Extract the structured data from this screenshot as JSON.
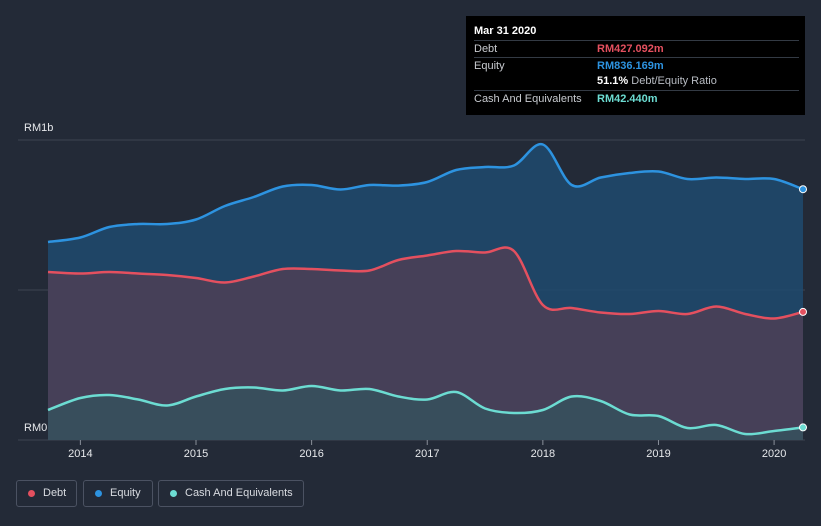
{
  "tooltip": {
    "date": "Mar 31 2020",
    "debt_label": "Debt",
    "debt_value": "RM427.092m",
    "equity_label": "Equity",
    "equity_value": "RM836.169m",
    "ratio_value": "51.1%",
    "ratio_label": "Debt/Equity Ratio",
    "cash_label": "Cash And Equivalents",
    "cash_value": "RM42.440m"
  },
  "legend": [
    {
      "label": "Debt",
      "color": "#e4505f"
    },
    {
      "label": "Equity",
      "color": "#2d93e0"
    },
    {
      "label": "Cash And Equivalents",
      "color": "#6cdcd2"
    }
  ],
  "chart_data": {
    "type": "area",
    "title": "",
    "ylabel_top": "RM1b",
    "ylabel_bottom": "RM0",
    "ylim": [
      0,
      1000
    ],
    "xlim": [
      2013.72,
      2020.25
    ],
    "x_ticks": [
      2014,
      2015,
      2016,
      2017,
      2018,
      2019,
      2020
    ],
    "x_tick_labels": [
      "2014",
      "2015",
      "2016",
      "2017",
      "2018",
      "2019",
      "2020"
    ],
    "colors": {
      "debt": "#e4505f",
      "equity": "#2d93e0",
      "cash": "#6cdcd2"
    },
    "series": [
      {
        "name": "Equity",
        "x": [
          2013.72,
          2014.0,
          2014.25,
          2014.5,
          2014.75,
          2015.0,
          2015.25,
          2015.5,
          2015.75,
          2016.0,
          2016.25,
          2016.5,
          2016.75,
          2017.0,
          2017.25,
          2017.5,
          2017.75,
          2018.0,
          2018.25,
          2018.5,
          2018.75,
          2019.0,
          2019.25,
          2019.5,
          2019.75,
          2020.0,
          2020.25
        ],
        "values": [
          660,
          675,
          710,
          720,
          720,
          735,
          780,
          810,
          845,
          850,
          835,
          850,
          848,
          860,
          900,
          910,
          915,
          985,
          850,
          875,
          890,
          895,
          870,
          875,
          870,
          870,
          836
        ]
      },
      {
        "name": "Debt",
        "x": [
          2013.72,
          2014.0,
          2014.25,
          2014.5,
          2014.75,
          2015.0,
          2015.25,
          2015.5,
          2015.75,
          2016.0,
          2016.25,
          2016.5,
          2016.75,
          2017.0,
          2017.25,
          2017.5,
          2017.75,
          2018.0,
          2018.25,
          2018.5,
          2018.75,
          2019.0,
          2019.25,
          2019.5,
          2019.75,
          2020.0,
          2020.25
        ],
        "values": [
          560,
          555,
          560,
          555,
          550,
          540,
          525,
          545,
          570,
          570,
          565,
          565,
          600,
          615,
          630,
          625,
          630,
          450,
          440,
          425,
          420,
          430,
          420,
          445,
          420,
          405,
          427
        ]
      },
      {
        "name": "Cash And Equivalents",
        "x": [
          2013.72,
          2014.0,
          2014.25,
          2014.5,
          2014.75,
          2015.0,
          2015.25,
          2015.5,
          2015.75,
          2016.0,
          2016.25,
          2016.5,
          2016.75,
          2017.0,
          2017.25,
          2017.5,
          2017.75,
          2018.0,
          2018.25,
          2018.5,
          2018.75,
          2019.0,
          2019.25,
          2019.5,
          2019.75,
          2020.0,
          2020.25
        ],
        "values": [
          100,
          140,
          150,
          135,
          115,
          145,
          170,
          175,
          165,
          180,
          165,
          170,
          145,
          135,
          160,
          105,
          90,
          100,
          145,
          130,
          85,
          80,
          40,
          50,
          20,
          30,
          42
        ]
      }
    ]
  }
}
